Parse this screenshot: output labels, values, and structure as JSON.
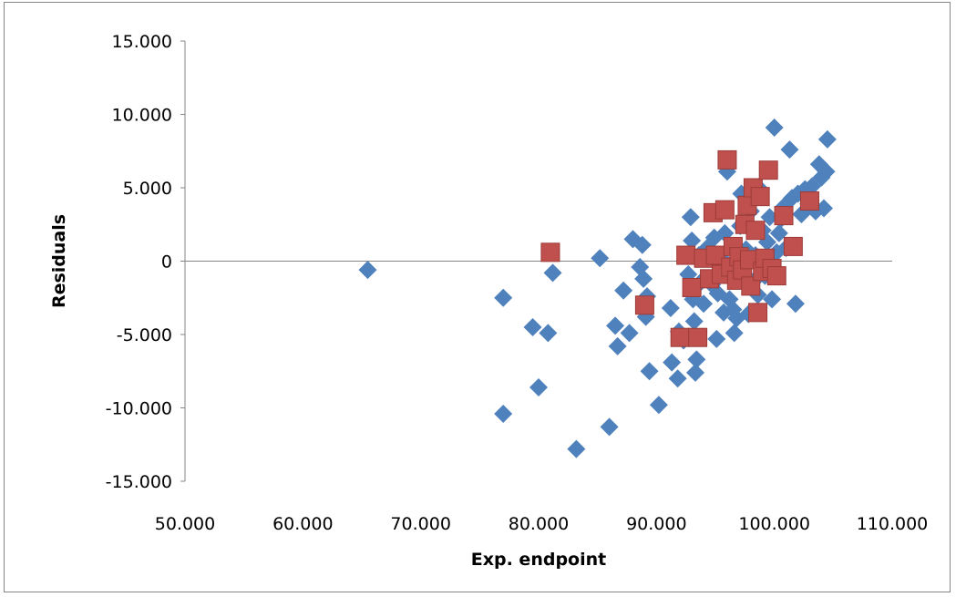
{
  "chart_data": {
    "type": "scatter",
    "title": "",
    "xlabel": "Exp. endpoint",
    "ylabel": "Residuals",
    "xlim": [
      50,
      110
    ],
    "ylim": [
      -15,
      15
    ],
    "x_ticks": [
      50,
      60,
      70,
      80,
      90,
      100,
      110
    ],
    "y_ticks": [
      15,
      10,
      5,
      0,
      -5,
      -10,
      -15
    ],
    "x_tick_labels": [
      "50.000",
      "60.000",
      "70.000",
      "80.000",
      "90.000",
      "100.000",
      "110.000"
    ],
    "y_tick_labels": [
      "15.000",
      "10.000",
      "5.000",
      "0",
      "-5.000",
      "-10.000",
      "-15.000"
    ],
    "grid": false,
    "legend": "none",
    "series": [
      {
        "marker": "diamond",
        "color": "#4f81bd",
        "points": [
          [
            65.5,
            -0.6
          ],
          [
            77.0,
            -2.5
          ],
          [
            77.0,
            -10.4
          ],
          [
            79.5,
            -4.5
          ],
          [
            80.0,
            -8.6
          ],
          [
            80.8,
            -4.9
          ],
          [
            81.2,
            -0.8
          ],
          [
            83.2,
            -12.8
          ],
          [
            85.2,
            0.2
          ],
          [
            86.0,
            -11.3
          ],
          [
            86.5,
            -4.4
          ],
          [
            86.7,
            -5.8
          ],
          [
            87.2,
            -2.0
          ],
          [
            87.7,
            -4.9
          ],
          [
            88.0,
            1.5
          ],
          [
            88.8,
            1.1
          ],
          [
            88.6,
            -0.4
          ],
          [
            88.9,
            -1.2
          ],
          [
            89.2,
            -2.4
          ],
          [
            89.1,
            -3.8
          ],
          [
            89.4,
            -7.5
          ],
          [
            90.2,
            -9.8
          ],
          [
            91.2,
            -3.2
          ],
          [
            91.3,
            -6.9
          ],
          [
            91.8,
            -8.0
          ],
          [
            91.9,
            -4.8
          ],
          [
            92.3,
            -5.4
          ],
          [
            92.7,
            -0.9
          ],
          [
            92.9,
            3.0
          ],
          [
            93.0,
            1.4
          ],
          [
            93.1,
            -2.6
          ],
          [
            93.2,
            -4.1
          ],
          [
            93.3,
            -7.6
          ],
          [
            93.4,
            -6.7
          ],
          [
            93.6,
            0.4
          ],
          [
            93.8,
            -1.4
          ],
          [
            94.0,
            -2.9
          ],
          [
            94.3,
            0.9
          ],
          [
            94.7,
            -1.6
          ],
          [
            94.9,
            1.6
          ],
          [
            95.1,
            -5.3
          ],
          [
            95.2,
            -2.2
          ],
          [
            95.5,
            0.2
          ],
          [
            95.7,
            -3.5
          ],
          [
            95.8,
            1.9
          ],
          [
            96.0,
            6.1
          ],
          [
            96.2,
            -2.6
          ],
          [
            96.3,
            0.9
          ],
          [
            96.5,
            -3.3
          ],
          [
            96.6,
            -4.9
          ],
          [
            96.8,
            -3.9
          ],
          [
            97.0,
            -1.1
          ],
          [
            97.1,
            2.4
          ],
          [
            97.2,
            4.6
          ],
          [
            97.4,
            -0.4
          ],
          [
            97.6,
            0.8
          ],
          [
            97.8,
            -3.6
          ],
          [
            98.0,
            3.4
          ],
          [
            98.2,
            -1.4
          ],
          [
            98.4,
            0.4
          ],
          [
            98.6,
            -2.3
          ],
          [
            98.8,
            4.9
          ],
          [
            99.0,
            2.1
          ],
          [
            99.2,
            -1.0
          ],
          [
            99.4,
            1.3
          ],
          [
            99.6,
            3.0
          ],
          [
            99.8,
            -2.6
          ],
          [
            100.0,
            9.1
          ],
          [
            100.2,
            0.6
          ],
          [
            100.4,
            1.9
          ],
          [
            100.6,
            2.9
          ],
          [
            100.8,
            3.7
          ],
          [
            101.0,
            0.9
          ],
          [
            101.3,
            7.6
          ],
          [
            101.5,
            4.3
          ],
          [
            101.8,
            -2.9
          ],
          [
            102.0,
            4.6
          ],
          [
            102.3,
            3.2
          ],
          [
            102.6,
            4.9
          ],
          [
            102.9,
            3.9
          ],
          [
            103.2,
            5.1
          ],
          [
            103.5,
            3.4
          ],
          [
            103.8,
            6.6
          ],
          [
            104.0,
            5.7
          ],
          [
            104.2,
            3.6
          ],
          [
            104.4,
            6.1
          ],
          [
            104.5,
            8.3
          ]
        ]
      },
      {
        "marker": "square",
        "color": "#c0504d",
        "points": [
          [
            81.0,
            0.6
          ],
          [
            89.0,
            -3.0
          ],
          [
            92.0,
            -5.2
          ],
          [
            92.5,
            0.4
          ],
          [
            93.0,
            -1.8
          ],
          [
            93.5,
            -5.2
          ],
          [
            94.0,
            0.2
          ],
          [
            94.5,
            -1.2
          ],
          [
            94.8,
            3.3
          ],
          [
            95.0,
            0.4
          ],
          [
            95.5,
            -0.9
          ],
          [
            95.8,
            3.5
          ],
          [
            96.0,
            6.9
          ],
          [
            96.3,
            -0.4
          ],
          [
            96.5,
            1.0
          ],
          [
            96.8,
            -1.3
          ],
          [
            97.0,
            0.3
          ],
          [
            97.3,
            -0.6
          ],
          [
            97.5,
            2.5
          ],
          [
            97.7,
            3.8
          ],
          [
            97.9,
            0.1
          ],
          [
            98.0,
            -1.7
          ],
          [
            98.2,
            5.0
          ],
          [
            98.4,
            2.1
          ],
          [
            98.6,
            -3.5
          ],
          [
            98.8,
            4.4
          ],
          [
            99.0,
            -0.7
          ],
          [
            99.2,
            0.2
          ],
          [
            99.5,
            6.2
          ],
          [
            99.8,
            -0.5
          ],
          [
            100.2,
            -1.0
          ],
          [
            100.8,
            3.1
          ],
          [
            101.6,
            1.0
          ],
          [
            103.0,
            4.1
          ]
        ]
      }
    ]
  }
}
